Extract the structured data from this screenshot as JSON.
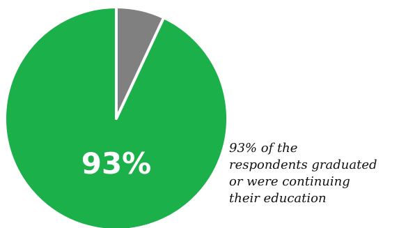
{
  "chart_data": {
    "type": "pie",
    "slices": [
      {
        "value": 93,
        "color": "#1bb04a"
      },
      {
        "value": 7,
        "color": "#808080"
      }
    ],
    "center_label": "93%",
    "annotation": [
      "93% of the",
      "respondents graduated",
      "or were continuing",
      "their education"
    ]
  }
}
